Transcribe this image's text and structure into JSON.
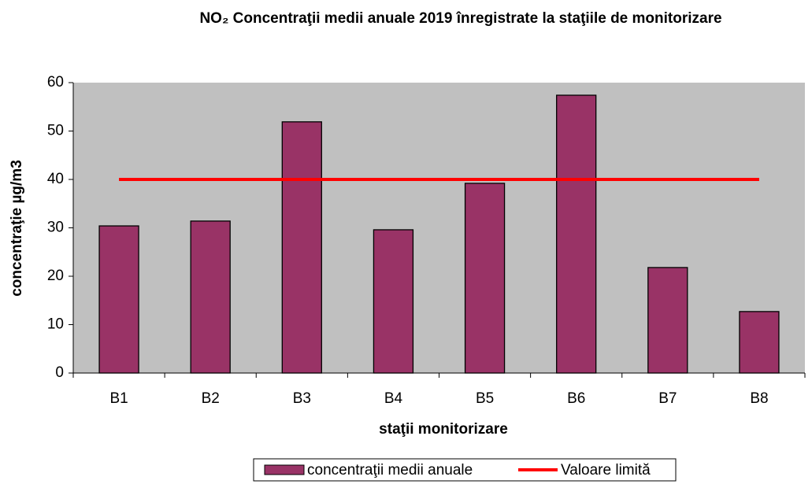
{
  "chart_data": {
    "type": "bar",
    "title": "NO₂ Concentraţii medii anuale 2019 înregistrate la staţiile de monitorizare",
    "x_label": "staţii monitorizare",
    "y_label": "concentraţie µg/m3",
    "categories": [
      "B1",
      "B2",
      "B3",
      "B4",
      "B5",
      "B6",
      "B7",
      "B8"
    ],
    "series": [
      {
        "name": "concentraţii medii anuale",
        "type": "bar",
        "color": "#993366",
        "values": [
          30.4,
          31.4,
          51.9,
          29.6,
          39.2,
          57.4,
          21.8,
          12.7
        ]
      },
      {
        "name": "Valoare limită",
        "type": "line",
        "color": "#ff0000",
        "values": [
          40,
          40,
          40,
          40,
          40,
          40,
          40,
          40
        ]
      }
    ],
    "ylim": [
      0,
      60
    ],
    "yticks": [
      0,
      10,
      20,
      30,
      40,
      50,
      60
    ],
    "grid": false,
    "legend": "bottom"
  }
}
